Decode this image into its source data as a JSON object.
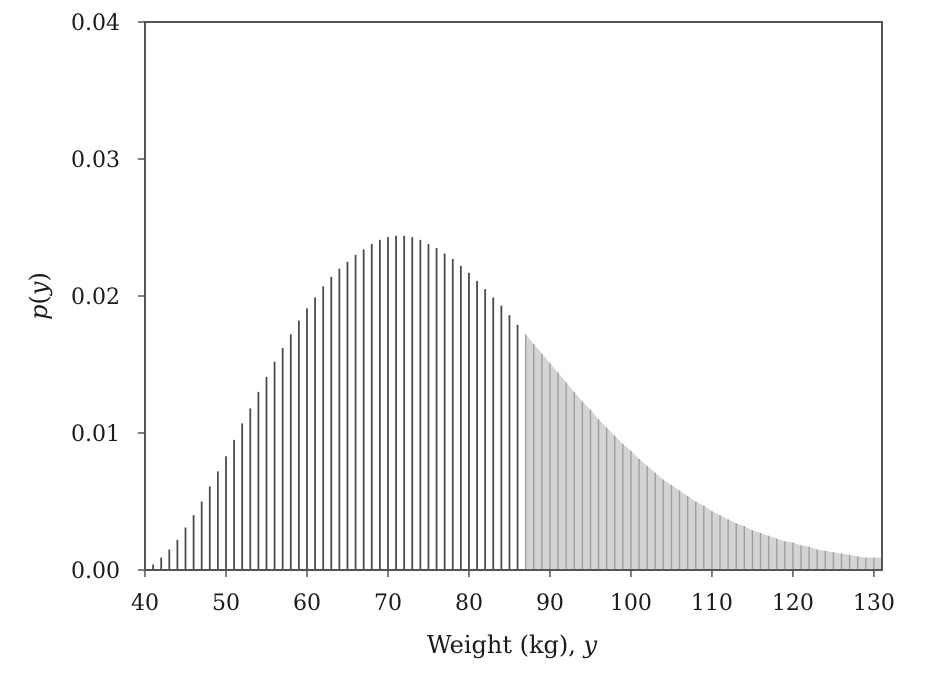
{
  "chart_data": {
    "type": "bar",
    "title": "",
    "xlabel": "Weight (kg), ",
    "xlabel_var": "y",
    "ylabel_fn": "p",
    "ylabel_var": "y",
    "xlim": [
      40,
      131
    ],
    "ylim": [
      0,
      0.04
    ],
    "x_ticks": [
      "40",
      "50",
      "60",
      "70",
      "80",
      "90",
      "100",
      "110",
      "120",
      "130"
    ],
    "y_ticks": [
      "0.00",
      "0.01",
      "0.02",
      "0.03",
      "0.04"
    ],
    "grid": false,
    "x_start": 41,
    "x_step": 1,
    "values": [
      0.0004,
      0.0009,
      0.0015,
      0.0022,
      0.0031,
      0.004,
      0.005,
      0.0061,
      0.0072,
      0.0083,
      0.0095,
      0.0107,
      0.0118,
      0.013,
      0.0141,
      0.0152,
      0.0162,
      0.0172,
      0.0182,
      0.0191,
      0.0199,
      0.0207,
      0.0214,
      0.022,
      0.0225,
      0.023,
      0.0234,
      0.0238,
      0.0241,
      0.0243,
      0.0244,
      0.0244,
      0.0243,
      0.0241,
      0.0238,
      0.0235,
      0.0231,
      0.0227,
      0.0222,
      0.0217,
      0.0211,
      0.0205,
      0.0199,
      0.0193,
      0.0186,
      0.0179,
      0.0172,
      0.0165,
      0.0158,
      0.0151,
      0.0144,
      0.0137,
      0.013,
      0.0123,
      0.0117,
      0.011,
      0.0104,
      0.0098,
      0.0092,
      0.0087,
      0.0081,
      0.0076,
      0.0071,
      0.0066,
      0.0062,
      0.0058,
      0.0054,
      0.005,
      0.0047,
      0.0043,
      0.004,
      0.0037,
      0.0034,
      0.0032,
      0.0029,
      0.0027,
      0.0025,
      0.0023,
      0.0021,
      0.002,
      0.0018,
      0.0017,
      0.0015,
      0.0014,
      0.0013,
      0.0012,
      0.0011,
      0.001,
      0.0009,
      0.0009
    ],
    "shade_from_x": 87,
    "colors": {
      "bar": "#4a4a4a",
      "shaded_bar": "#9e9e9e",
      "shaded_fill": "#d4d4d4",
      "axis": "#555555"
    }
  }
}
